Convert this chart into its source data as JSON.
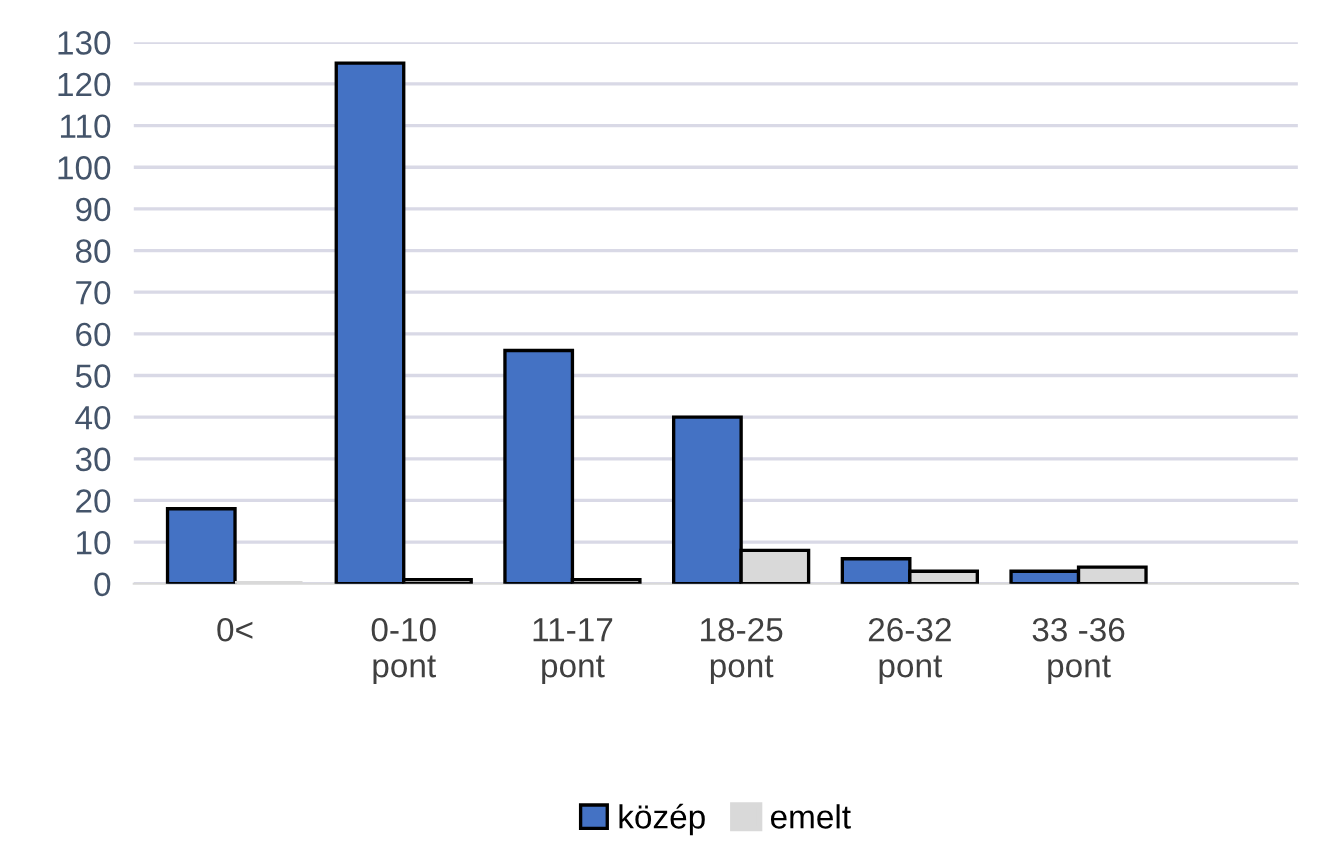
{
  "chart_data": {
    "type": "bar",
    "categories": [
      "0<",
      "0-10\npont",
      "11-17\npont",
      "18-25\npont",
      "26-32\npont",
      "33 -36\npont"
    ],
    "series": [
      {
        "name": "közép",
        "color": "#4472c4",
        "values": [
          18,
          125,
          56,
          40,
          6,
          3
        ]
      },
      {
        "name": "emelt",
        "color": "#d9d9d9",
        "values": [
          0,
          1,
          1,
          8,
          3,
          4
        ]
      }
    ],
    "ylim": [
      0,
      130
    ],
    "yticks": [
      0,
      10,
      20,
      30,
      40,
      50,
      60,
      70,
      80,
      90,
      100,
      110,
      120,
      130
    ],
    "grid": "y",
    "legend": "bottom"
  }
}
